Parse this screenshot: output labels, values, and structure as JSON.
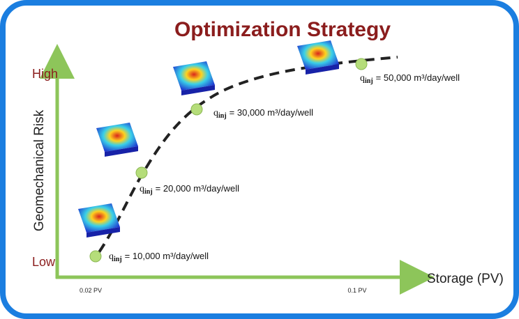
{
  "title": "Optimization Strategy",
  "y_axis": {
    "label": "Geomechanical Risk",
    "high": "High",
    "low": "Low"
  },
  "x_axis": {
    "label": "Storage (PV)",
    "ticks": [
      "0.02 PV",
      "0.1 PV"
    ]
  },
  "points": [
    {
      "symbol": "q",
      "subscript": "inj",
      "text": "= 10,000 m³/day/well"
    },
    {
      "symbol": "q",
      "subscript": "inj",
      "text": "= 20,000 m³/day/well"
    },
    {
      "symbol": "q",
      "subscript": "inj",
      "text": "= 30,000 m³/day/well"
    },
    {
      "symbol": "q",
      "subscript": "inj",
      "text": "= 50,000 m³/day/well"
    }
  ]
}
